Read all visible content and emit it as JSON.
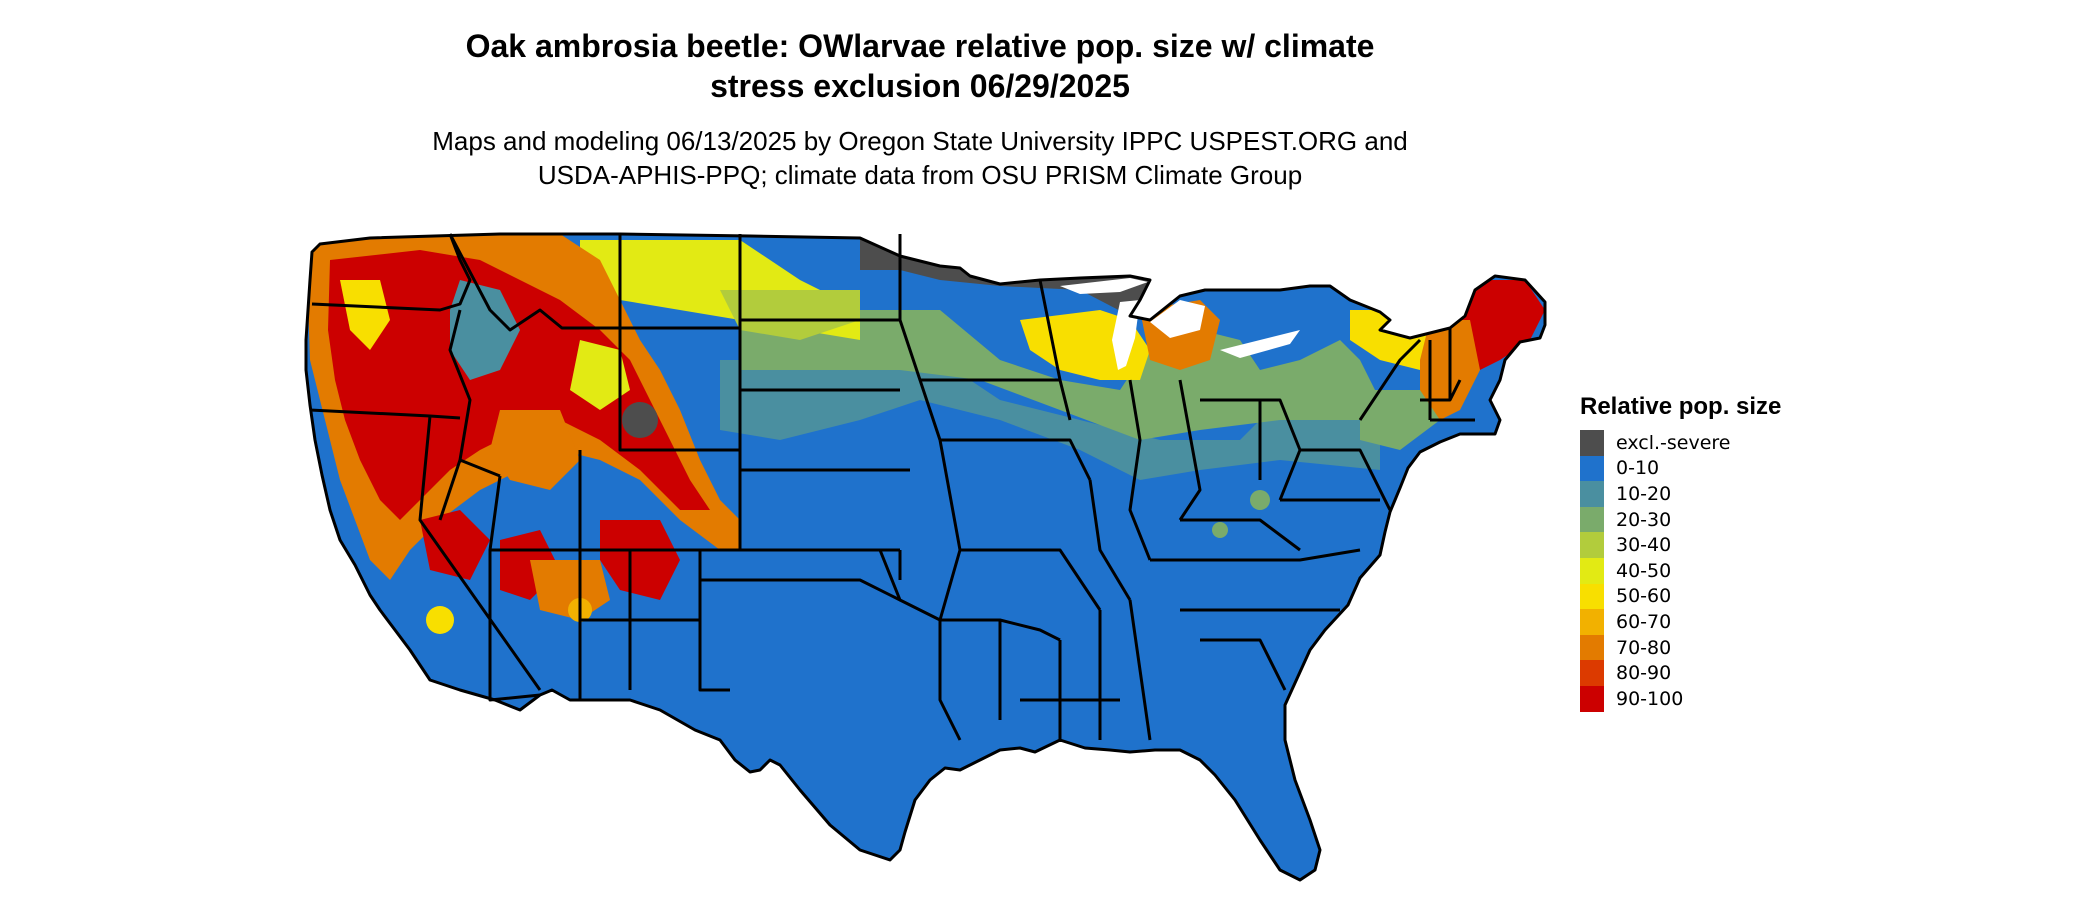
{
  "title": {
    "line1": "Oak ambrosia beetle: OWlarvae relative pop. size w/ climate",
    "line2": "stress exclusion 06/29/2025"
  },
  "subtitle": {
    "line1": "Maps and modeling 06/13/2025 by Oregon State University IPPC USPEST.ORG and",
    "line2": "USDA-APHIS-PPQ; climate data from OSU PRISM Climate Group"
  },
  "legend": {
    "title": "Relative pop. size",
    "items": [
      {
        "label": "excl.-severe",
        "color": "#4d4d4d"
      },
      {
        "label": "0-10",
        "color": "#1f72cc"
      },
      {
        "label": "10-20",
        "color": "#4a8fa0"
      },
      {
        "label": "20-30",
        "color": "#7aab6b"
      },
      {
        "label": "30-40",
        "color": "#b2cc3c"
      },
      {
        "label": "40-50",
        "color": "#e2ea14"
      },
      {
        "label": "50-60",
        "color": "#f8df00"
      },
      {
        "label": "60-70",
        "color": "#f2b100"
      },
      {
        "label": "70-80",
        "color": "#e37b00"
      },
      {
        "label": "80-90",
        "color": "#dc3a00"
      },
      {
        "label": "90-100",
        "color": "#cc0000"
      }
    ]
  }
}
